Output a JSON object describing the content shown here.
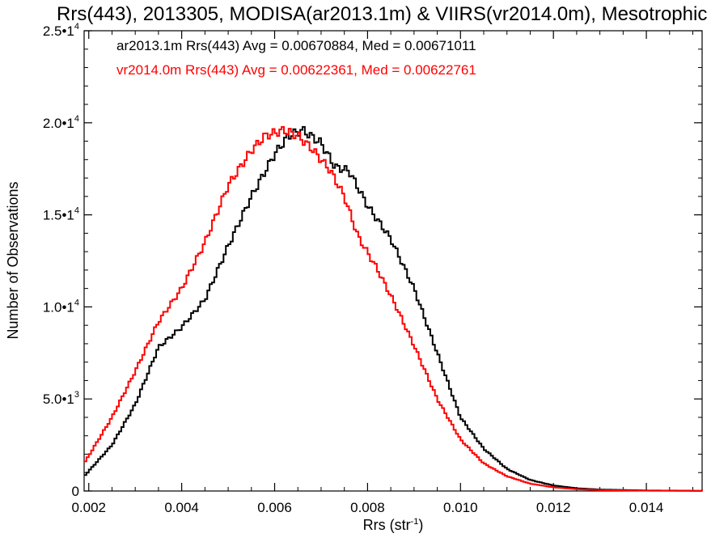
{
  "chart_data": {
    "type": "line",
    "style": "step",
    "title": "Rrs(443), 2013305, MODISA(ar2013.1m) & VIIRS(vr2014.0m), Mesotrophic",
    "xlabel_main": "Rrs (str",
    "xlabel_sup": "-1",
    "xlabel_close": ")",
    "ylabel": "Number of Observations",
    "xlim": [
      0.0019,
      0.0152
    ],
    "ylim": [
      0,
      25000
    ],
    "grid": false,
    "legend_position": "top-left",
    "x_ticks": [
      {
        "value": 0.002,
        "label": "0.002"
      },
      {
        "value": 0.004,
        "label": "0.004"
      },
      {
        "value": 0.006,
        "label": "0.006"
      },
      {
        "value": 0.008,
        "label": "0.008"
      },
      {
        "value": 0.01,
        "label": "0.010"
      },
      {
        "value": 0.012,
        "label": "0.012"
      },
      {
        "value": 0.014,
        "label": "0.014"
      }
    ],
    "y_ticks": [
      {
        "value": 0,
        "mant": "0",
        "exp": ""
      },
      {
        "value": 5000,
        "mant": "5.0•1",
        "exp": "3"
      },
      {
        "value": 10000,
        "mant": "1.0•1",
        "exp": "4"
      },
      {
        "value": 15000,
        "mant": "1.5•1",
        "exp": "4"
      },
      {
        "value": 20000,
        "mant": "2.0•1",
        "exp": "4"
      },
      {
        "value": 25000,
        "mant": "2.5•1",
        "exp": "4"
      }
    ],
    "series": [
      {
        "name": "ar2013.1m Rrs(443) Avg = 0.00670884, Med = 0.00671011",
        "color": "#000000",
        "x": [
          0.0019,
          0.0025,
          0.003,
          0.0035,
          0.004,
          0.0045,
          0.005,
          0.0055,
          0.006,
          0.0063,
          0.0066,
          0.007,
          0.0073,
          0.0076,
          0.008,
          0.0085,
          0.009,
          0.0095,
          0.01,
          0.0105,
          0.011,
          0.0115,
          0.012,
          0.0125,
          0.013,
          0.014,
          0.0152
        ],
        "y": [
          800,
          2500,
          4700,
          7800,
          8900,
          10400,
          13300,
          16000,
          18300,
          19300,
          19600,
          18900,
          17600,
          17400,
          15500,
          13700,
          11000,
          7500,
          4000,
          2300,
          1200,
          600,
          300,
          150,
          80,
          30,
          10
        ]
      },
      {
        "name": "vr2014.0m Rrs(443) Avg = 0.00622361, Med = 0.00622761",
        "color": "#ff0000",
        "x": [
          0.0019,
          0.0025,
          0.003,
          0.0035,
          0.004,
          0.0045,
          0.005,
          0.0055,
          0.0058,
          0.0062,
          0.0065,
          0.0068,
          0.0072,
          0.0075,
          0.0078,
          0.0082,
          0.0086,
          0.009,
          0.0095,
          0.01,
          0.0105,
          0.011,
          0.0115,
          0.012,
          0.0125,
          0.013,
          0.014,
          0.0152
        ],
        "y": [
          1500,
          4000,
          6500,
          9200,
          11000,
          13500,
          16600,
          18500,
          19300,
          19600,
          19300,
          18600,
          17400,
          16000,
          13800,
          12100,
          10100,
          7900,
          5000,
          2800,
          1500,
          800,
          400,
          200,
          100,
          50,
          20,
          5
        ]
      }
    ]
  }
}
